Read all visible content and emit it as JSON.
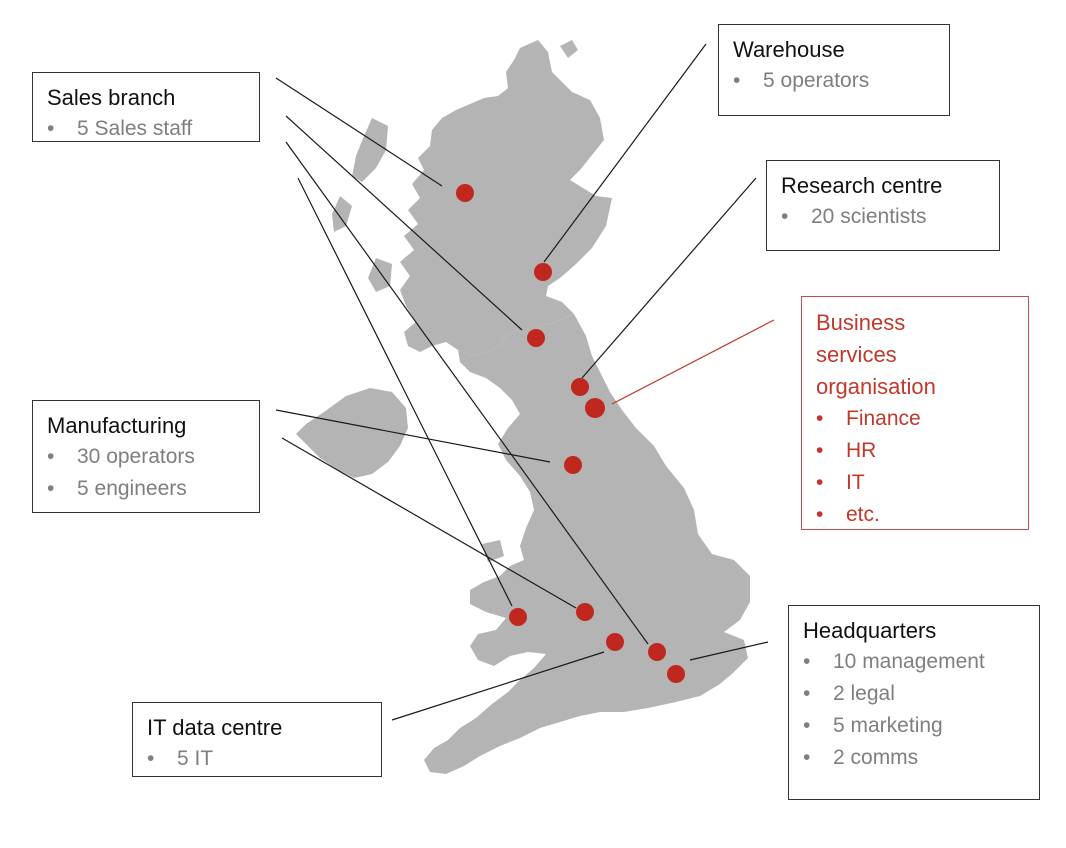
{
  "colors": {
    "map_fill": "#b4b4b4",
    "marker": "#c0281f",
    "leader_line": "#1a1a1a",
    "accent_red": "#c0392b"
  },
  "boxes": {
    "sales_branch": {
      "title": "Sales branch",
      "items": [
        "5 Sales staff"
      ]
    },
    "warehouse": {
      "title": "Warehouse",
      "items": [
        "5 operators"
      ]
    },
    "research_centre": {
      "title": "Research centre",
      "items": [
        "20 scientists"
      ]
    },
    "business_services": {
      "title": "Business services organisation",
      "items": [
        "Finance",
        "HR",
        "IT",
        "etc."
      ]
    },
    "manufacturing": {
      "title": "Manufacturing",
      "items": [
        "30 operators",
        "5 engineers"
      ]
    },
    "headquarters": {
      "title": "Headquarters",
      "items": [
        "10 management",
        "2 legal",
        "5 marketing",
        "2 comms"
      ]
    },
    "it_data_centre": {
      "title": "IT data centre",
      "items": [
        "5 IT"
      ]
    }
  },
  "bullet": "•"
}
